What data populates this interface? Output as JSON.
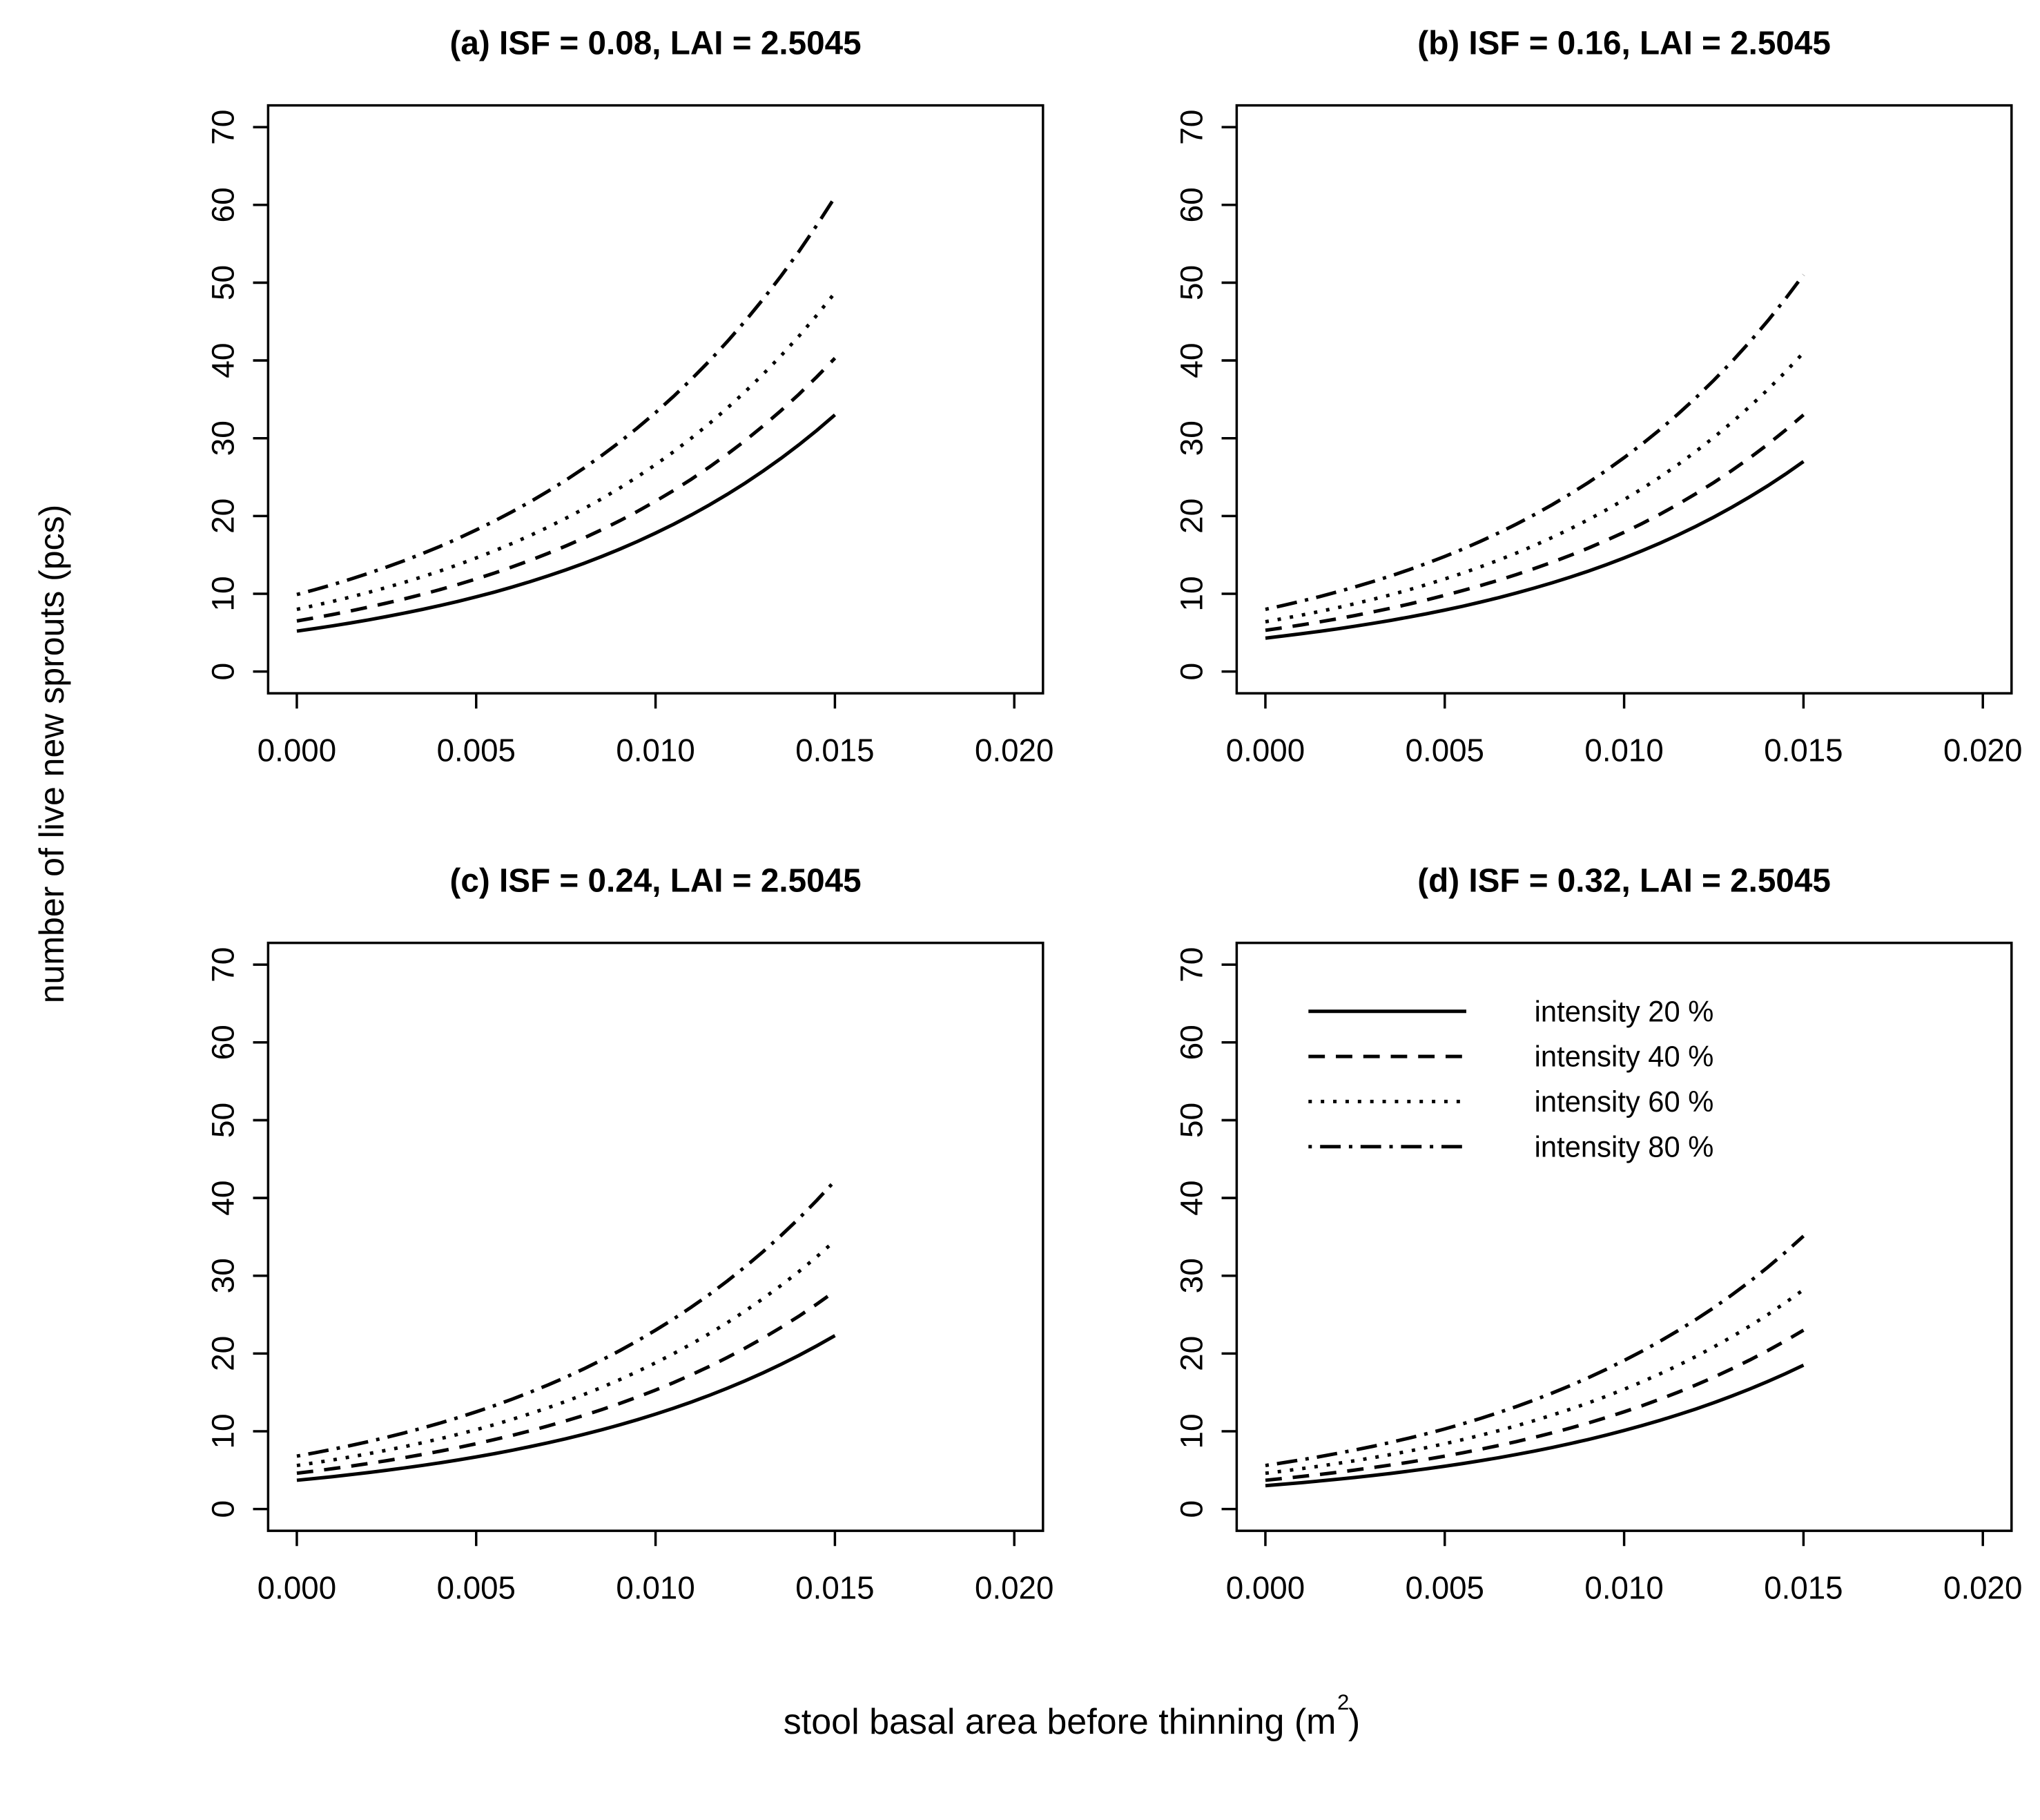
{
  "axes": {
    "y_label": "number of live new sprouts (pcs)",
    "x_label_prefix": "stool basal area before thinning (m",
    "x_label_sup": "2",
    "x_label_suffix": ")",
    "x_ticks": [
      {
        "value": 0.0,
        "label": "0.000"
      },
      {
        "value": 0.005,
        "label": "0.005"
      },
      {
        "value": 0.01,
        "label": "0.010"
      },
      {
        "value": 0.015,
        "label": "0.015"
      },
      {
        "value": 0.02,
        "label": "0.020"
      }
    ],
    "y_ticks": [
      {
        "value": 0,
        "label": "0"
      },
      {
        "value": 10,
        "label": "10"
      },
      {
        "value": 20,
        "label": "20"
      },
      {
        "value": 30,
        "label": "30"
      },
      {
        "value": 40,
        "label": "40"
      },
      {
        "value": 50,
        "label": "50"
      },
      {
        "value": 60,
        "label": "60"
      },
      {
        "value": 70,
        "label": "70"
      }
    ]
  },
  "legend": {
    "entries": [
      {
        "label": "intensity 20 %",
        "linestyle": "solid"
      },
      {
        "label": "intensity 40 %",
        "linestyle": "dashed"
      },
      {
        "label": "intensity 60 %",
        "linestyle": "dotted"
      },
      {
        "label": "intensity 80 %",
        "linestyle": "dashdot"
      }
    ],
    "position": "inside-top-left-of-panel-d"
  },
  "colors": {
    "foreground": "#000000",
    "background": "#ffffff"
  },
  "chart_data": [
    {
      "type": "line",
      "title": "(a) ISF = 0.08, LAI = 2.5045",
      "ISF": 0.08,
      "LAI": 2.5045,
      "xlim": [
        0,
        0.02
      ],
      "ylim": [
        0,
        70
      ],
      "grid": false,
      "x_sample": [
        0,
        0.005,
        0.01,
        0.015
      ],
      "curve_shape": "exponential",
      "show_legend": false,
      "series": [
        {
          "name": "intensity 20 %",
          "linestyle": "solid",
          "values": [
            5.2,
            9.6,
            17.8,
            33.0
          ]
        },
        {
          "name": "intensity 40 %",
          "linestyle": "dashed",
          "values": [
            6.5,
            11.9,
            21.9,
            40.3
          ]
        },
        {
          "name": "intensity 60 %",
          "linestyle": "dotted",
          "values": [
            8.0,
            14.6,
            26.6,
            48.7
          ]
        },
        {
          "name": "intensity 80 %",
          "linestyle": "dashdot",
          "values": [
            9.9,
            18.2,
            33.3,
            61.0
          ]
        }
      ]
    },
    {
      "type": "line",
      "title": "(b) ISF = 0.16, LAI = 2.5045",
      "ISF": 0.16,
      "LAI": 2.5045,
      "xlim": [
        0,
        0.02
      ],
      "ylim": [
        0,
        70
      ],
      "grid": false,
      "x_sample": [
        0,
        0.005,
        0.01,
        0.015
      ],
      "curve_shape": "exponential",
      "show_legend": false,
      "series": [
        {
          "name": "intensity 20 %",
          "linestyle": "solid",
          "values": [
            4.3,
            7.9,
            14.6,
            27.0
          ]
        },
        {
          "name": "intensity 40 %",
          "linestyle": "dashed",
          "values": [
            5.3,
            9.8,
            17.9,
            33.0
          ]
        },
        {
          "name": "intensity 60 %",
          "linestyle": "dotted",
          "values": [
            6.4,
            11.9,
            22.1,
            41.0
          ]
        },
        {
          "name": "intensity 80 %",
          "linestyle": "dashdot",
          "values": [
            8.0,
            14.8,
            27.5,
            51.0
          ]
        }
      ]
    },
    {
      "type": "line",
      "title": "(c) ISF = 0.24, LAI = 2.5045",
      "ISF": 0.24,
      "LAI": 2.5045,
      "xlim": [
        0,
        0.02
      ],
      "ylim": [
        0,
        70
      ],
      "grid": false,
      "x_sample": [
        0,
        0.005,
        0.01,
        0.015
      ],
      "curve_shape": "exponential",
      "show_legend": false,
      "series": [
        {
          "name": "intensity 20 %",
          "linestyle": "solid",
          "values": [
            3.7,
            6.7,
            12.2,
            22.3
          ]
        },
        {
          "name": "intensity 40 %",
          "linestyle": "dashed",
          "values": [
            4.6,
            8.4,
            15.3,
            28.0
          ]
        },
        {
          "name": "intensity 60 %",
          "linestyle": "dotted",
          "values": [
            5.6,
            10.2,
            18.8,
            34.5
          ]
        },
        {
          "name": "intensity 80 %",
          "linestyle": "dashdot",
          "values": [
            6.8,
            12.5,
            23.0,
            42.2
          ]
        }
      ]
    },
    {
      "type": "line",
      "title": "(d) ISF = 0.32, LAI = 2.5045",
      "ISF": 0.32,
      "LAI": 2.5045,
      "xlim": [
        0,
        0.02
      ],
      "ylim": [
        0,
        70
      ],
      "grid": false,
      "x_sample": [
        0,
        0.005,
        0.01,
        0.015
      ],
      "curve_shape": "exponential",
      "show_legend": true,
      "series": [
        {
          "name": "intensity 20 %",
          "linestyle": "solid",
          "values": [
            3.0,
            5.5,
            10.1,
            18.5
          ]
        },
        {
          "name": "intensity 40 %",
          "linestyle": "dashed",
          "values": [
            3.7,
            6.8,
            12.5,
            23.0
          ]
        },
        {
          "name": "intensity 60 %",
          "linestyle": "dotted",
          "values": [
            4.6,
            8.4,
            15.4,
            28.2
          ]
        },
        {
          "name": "intensity 80 %",
          "linestyle": "dashdot",
          "values": [
            5.6,
            10.3,
            19.1,
            35.1
          ]
        }
      ]
    }
  ]
}
